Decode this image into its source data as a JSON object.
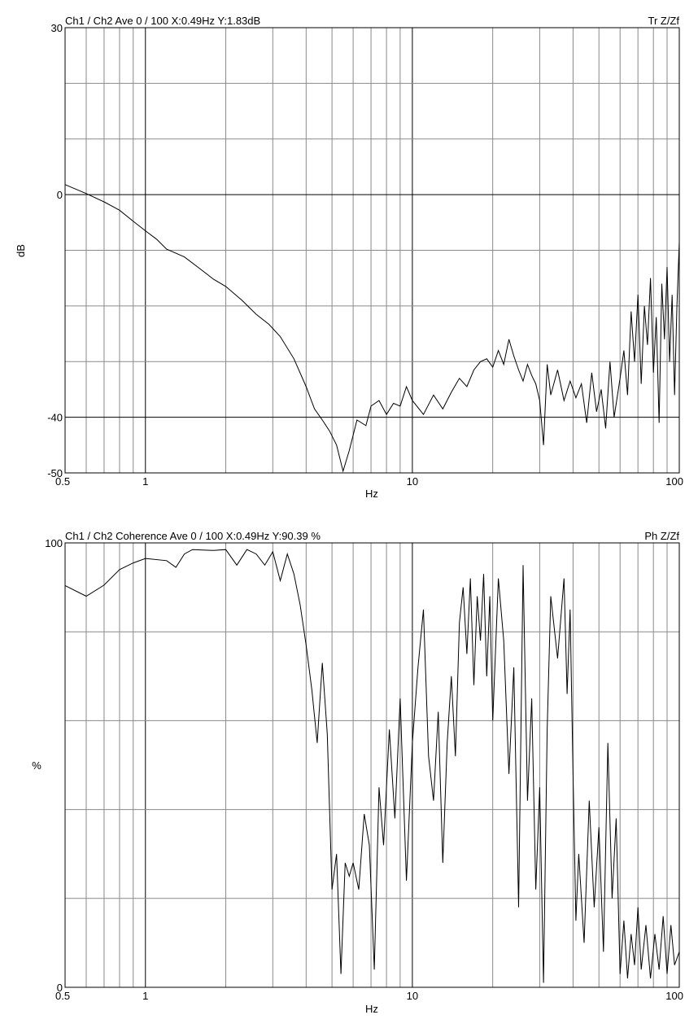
{
  "chart_data": [
    {
      "type": "line",
      "header": "Ch1 / Ch2  Ave 0 / 100  X:0.49Hz  Y:1.83dB",
      "mode_label": "Tr Z/Zf",
      "xlabel": "Hz",
      "ylabel": "dB",
      "x_scale": "log",
      "xlim": [
        0.5,
        100
      ],
      "ylim": [
        -50,
        30
      ],
      "x_ticks": [
        {
          "v": 0.5,
          "label": "0.5"
        },
        {
          "v": 1,
          "label": "1"
        },
        {
          "v": 10,
          "label": "10"
        },
        {
          "v": 100,
          "label": "100"
        }
      ],
      "y_ticks": [
        {
          "v": 30,
          "label": "30"
        },
        {
          "v": 0,
          "label": "0"
        },
        {
          "v": -40,
          "label": "-40"
        },
        {
          "v": -50,
          "label": "-50"
        }
      ],
      "y_grid": [
        30,
        20,
        10,
        0,
        -10,
        -20,
        -30,
        -40,
        -50
      ],
      "y_bold": [
        0,
        -40
      ],
      "grid": true,
      "series": [
        {
          "points": [
            [
              0.5,
              1.8
            ],
            [
              0.6,
              0.2
            ],
            [
              0.7,
              -1.3
            ],
            [
              0.8,
              -2.8
            ],
            [
              0.9,
              -4.8
            ],
            [
              1.0,
              -6.5
            ],
            [
              1.1,
              -8.0
            ],
            [
              1.2,
              -9.8
            ],
            [
              1.4,
              -11.2
            ],
            [
              1.6,
              -13.3
            ],
            [
              1.8,
              -15.2
            ],
            [
              2.0,
              -16.5
            ],
            [
              2.3,
              -19.0
            ],
            [
              2.6,
              -21.5
            ],
            [
              2.9,
              -23.3
            ],
            [
              3.2,
              -25.5
            ],
            [
              3.6,
              -29.5
            ],
            [
              4.0,
              -34.5
            ],
            [
              4.3,
              -38.5
            ],
            [
              4.6,
              -40.5
            ],
            [
              4.9,
              -42.5
            ],
            [
              5.2,
              -45.0
            ],
            [
              5.5,
              -49.7
            ],
            [
              5.8,
              -46.0
            ],
            [
              6.2,
              -40.5
            ],
            [
              6.7,
              -41.5
            ],
            [
              7.0,
              -38.0
            ],
            [
              7.5,
              -37.0
            ],
            [
              8.0,
              -39.5
            ],
            [
              8.5,
              -37.5
            ],
            [
              9.0,
              -38.0
            ],
            [
              9.5,
              -34.5
            ],
            [
              10.0,
              -37.0
            ],
            [
              11.0,
              -39.5
            ],
            [
              12.0,
              -36.0
            ],
            [
              13.0,
              -38.5
            ],
            [
              14.0,
              -35.5
            ],
            [
              15.0,
              -33.0
            ],
            [
              16.0,
              -34.5
            ],
            [
              17.0,
              -31.5
            ],
            [
              18.0,
              -30.0
            ],
            [
              19.0,
              -29.5
            ],
            [
              20.0,
              -31.0
            ],
            [
              21.0,
              -28.0
            ],
            [
              22.0,
              -30.5
            ],
            [
              23.0,
              -26.0
            ],
            [
              24.0,
              -29.0
            ],
            [
              25.0,
              -31.5
            ],
            [
              26.0,
              -33.5
            ],
            [
              27.0,
              -30.5
            ],
            [
              28.0,
              -32.5
            ],
            [
              29.0,
              -34.0
            ],
            [
              30.0,
              -37.0
            ],
            [
              31.0,
              -45.0
            ],
            [
              32.0,
              -30.5
            ],
            [
              33.0,
              -36.0
            ],
            [
              35.0,
              -31.5
            ],
            [
              37.0,
              -37.0
            ],
            [
              39.0,
              -33.5
            ],
            [
              41.0,
              -36.5
            ],
            [
              43.0,
              -34.0
            ],
            [
              45.0,
              -41.0
            ],
            [
              47.0,
              -32.0
            ],
            [
              49.0,
              -39.0
            ],
            [
              51.0,
              -35.0
            ],
            [
              53.0,
              -42.0
            ],
            [
              55.0,
              -30.0
            ],
            [
              57.0,
              -40.0
            ],
            [
              60.0,
              -33.0
            ],
            [
              62.0,
              -28.0
            ],
            [
              64.0,
              -36.0
            ],
            [
              66.0,
              -21.0
            ],
            [
              68.0,
              -30.0
            ],
            [
              70.0,
              -18.0
            ],
            [
              72.0,
              -34.0
            ],
            [
              74.0,
              -20.0
            ],
            [
              76.0,
              -27.0
            ],
            [
              78.0,
              -15.0
            ],
            [
              80.0,
              -32.0
            ],
            [
              82.0,
              -22.0
            ],
            [
              84.0,
              -41.0
            ],
            [
              86.0,
              -16.0
            ],
            [
              88.0,
              -26.0
            ],
            [
              90.0,
              -13.0
            ],
            [
              92.0,
              -30.0
            ],
            [
              94.0,
              -18.0
            ],
            [
              96.0,
              -36.0
            ],
            [
              98.0,
              -20.0
            ],
            [
              100.0,
              -8.5
            ]
          ]
        }
      ]
    },
    {
      "type": "line",
      "header": "Ch1 / Ch2  Coherence Ave 0 / 100  X:0.49Hz  Y:90.39 %",
      "mode_label": "Ph Z/Zf",
      "xlabel": "Hz",
      "ylabel": "%",
      "x_scale": "log",
      "xlim": [
        0.5,
        100
      ],
      "ylim": [
        0,
        100
      ],
      "x_ticks": [
        {
          "v": 0.5,
          "label": "0.5"
        },
        {
          "v": 1,
          "label": "1"
        },
        {
          "v": 10,
          "label": "10"
        },
        {
          "v": 100,
          "label": "100"
        }
      ],
      "y_ticks": [
        {
          "v": 100,
          "label": "100"
        },
        {
          "v": 0,
          "label": "0"
        }
      ],
      "y_grid": [
        100,
        80,
        60,
        40,
        20,
        0
      ],
      "y_bold": [],
      "grid": true,
      "series": [
        {
          "points": [
            [
              0.5,
              90.4
            ],
            [
              0.6,
              88.0
            ],
            [
              0.7,
              90.5
            ],
            [
              0.8,
              94.0
            ],
            [
              0.9,
              95.5
            ],
            [
              1.0,
              96.5
            ],
            [
              1.2,
              96.0
            ],
            [
              1.3,
              94.5
            ],
            [
              1.4,
              97.5
            ],
            [
              1.5,
              98.5
            ],
            [
              1.8,
              98.3
            ],
            [
              2.0,
              98.5
            ],
            [
              2.2,
              95.0
            ],
            [
              2.4,
              98.5
            ],
            [
              2.6,
              97.5
            ],
            [
              2.8,
              95.0
            ],
            [
              3.0,
              98.0
            ],
            [
              3.2,
              91.5
            ],
            [
              3.4,
              97.5
            ],
            [
              3.6,
              93.0
            ],
            [
              3.8,
              86.0
            ],
            [
              4.0,
              77.0
            ],
            [
              4.2,
              67.0
            ],
            [
              4.4,
              55.0
            ],
            [
              4.6,
              73.0
            ],
            [
              4.8,
              57.0
            ],
            [
              5.0,
              22.0
            ],
            [
              5.2,
              30.0
            ],
            [
              5.4,
              3.0
            ],
            [
              5.6,
              28.0
            ],
            [
              5.8,
              25.0
            ],
            [
              6.0,
              28.0
            ],
            [
              6.3,
              22.0
            ],
            [
              6.6,
              39.0
            ],
            [
              6.9,
              32.0
            ],
            [
              7.2,
              4.0
            ],
            [
              7.5,
              45.0
            ],
            [
              7.8,
              32.0
            ],
            [
              8.2,
              58.0
            ],
            [
              8.6,
              38.0
            ],
            [
              9.0,
              65.0
            ],
            [
              9.5,
              24.0
            ],
            [
              10.0,
              55.0
            ],
            [
              10.5,
              72.0
            ],
            [
              11.0,
              85.0
            ],
            [
              11.5,
              52.0
            ],
            [
              12.0,
              42.0
            ],
            [
              12.5,
              62.0
            ],
            [
              13.0,
              28.0
            ],
            [
              13.5,
              55.0
            ],
            [
              14.0,
              70.0
            ],
            [
              14.5,
              52.0
            ],
            [
              15.0,
              82.0
            ],
            [
              15.5,
              90.0
            ],
            [
              16.0,
              75.0
            ],
            [
              16.5,
              92.0
            ],
            [
              17.0,
              68.0
            ],
            [
              17.5,
              88.0
            ],
            [
              18.0,
              78.0
            ],
            [
              18.5,
              93.0
            ],
            [
              19.0,
              70.0
            ],
            [
              19.5,
              88.0
            ],
            [
              20.0,
              60.0
            ],
            [
              21.0,
              92.0
            ],
            [
              22.0,
              78.0
            ],
            [
              23.0,
              48.0
            ],
            [
              24.0,
              72.0
            ],
            [
              25.0,
              18.0
            ],
            [
              26.0,
              95.0
            ],
            [
              27.0,
              42.0
            ],
            [
              28.0,
              65.0
            ],
            [
              29.0,
              22.0
            ],
            [
              30.0,
              45.0
            ],
            [
              31.0,
              1.0
            ],
            [
              32.0,
              58.0
            ],
            [
              33.0,
              88.0
            ],
            [
              35.0,
              74.0
            ],
            [
              37.0,
              92.0
            ],
            [
              38.0,
              66.0
            ],
            [
              39.0,
              85.0
            ],
            [
              40.0,
              48.0
            ],
            [
              41.0,
              15.0
            ],
            [
              42.0,
              30.0
            ],
            [
              44.0,
              10.0
            ],
            [
              46.0,
              42.0
            ],
            [
              48.0,
              18.0
            ],
            [
              50.0,
              36.0
            ],
            [
              52.0,
              8.0
            ],
            [
              54.0,
              55.0
            ],
            [
              56.0,
              20.0
            ],
            [
              58.0,
              38.0
            ],
            [
              60.0,
              3.0
            ],
            [
              62.0,
              15.0
            ],
            [
              64.0,
              2.0
            ],
            [
              66.0,
              12.0
            ],
            [
              68.0,
              5.0
            ],
            [
              70.0,
              18.0
            ],
            [
              72.0,
              4.0
            ],
            [
              75.0,
              14.0
            ],
            [
              78.0,
              2.0
            ],
            [
              81.0,
              12.0
            ],
            [
              84.0,
              4.0
            ],
            [
              87.0,
              16.0
            ],
            [
              90.0,
              3.0
            ],
            [
              93.0,
              14.0
            ],
            [
              96.0,
              5.0
            ],
            [
              100.0,
              8.0
            ]
          ]
        }
      ]
    }
  ]
}
